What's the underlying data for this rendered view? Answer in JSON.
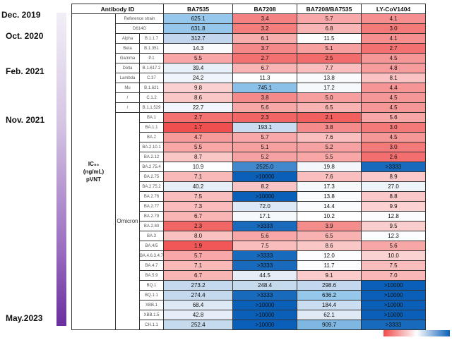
{
  "chart_data": {
    "type": "table",
    "header": {
      "antibody_id_label": "Antibody ID",
      "antibodies": [
        "BA7535",
        "BA7208",
        "BA7208/BA7535",
        "LY-CoV1404"
      ]
    },
    "row_group_label": [
      "IC₅₀",
      "(ng/mL)",
      "pVNT"
    ],
    "omicron_group_label": "Omicron",
    "timeline": [
      {
        "label": "Dec. 2019"
      },
      {
        "label": "Oct. 2020"
      },
      {
        "label": "Feb. 2021"
      },
      {
        "label": "Nov. 2021"
      },
      {
        "label": "May.2023"
      }
    ],
    "rows": [
      {
        "lineage": "Reference strain",
        "mutation": "",
        "group": "pre",
        "values": [
          "625.1",
          "3.4",
          "5.7",
          "4.1"
        ]
      },
      {
        "lineage": "D614G",
        "mutation": "",
        "group": "pre",
        "values": [
          "631.8",
          "3.2",
          "6.8",
          "3.0"
        ]
      },
      {
        "lineage": "Alpha",
        "mutation": "B.1.1.7",
        "group": "pre",
        "values": [
          "312.7",
          "6.1",
          "11.5",
          "4.1"
        ]
      },
      {
        "lineage": "Beta",
        "mutation": "B.1.351",
        "group": "pre",
        "values": [
          "14.3",
          "3.7",
          "5.1",
          "2.7"
        ]
      },
      {
        "lineage": "Gamma",
        "mutation": "P.1",
        "group": "pre",
        "values": [
          "5.5",
          "2.7",
          "2.5",
          "4.5"
        ]
      },
      {
        "lineage": "Delta",
        "mutation": "B.1.617.2",
        "group": "pre",
        "values": [
          "39.4",
          "6.7",
          "7.7",
          "4.8"
        ]
      },
      {
        "lineage": "Lambda",
        "mutation": "C.37",
        "group": "pre",
        "values": [
          "24.2",
          "11.3",
          "13.8",
          "8.1"
        ]
      },
      {
        "lineage": "Mu",
        "mutation": "B.1.621",
        "group": "pre",
        "values": [
          "9.8",
          "745.1",
          "17.2",
          "4.4"
        ]
      },
      {
        "lineage": "/",
        "mutation": "C.1.2",
        "group": "pre",
        "values": [
          "8.6",
          "3.8",
          "5.0",
          "4.5"
        ]
      },
      {
        "lineage": "/",
        "mutation": "B.1.1.529",
        "group": "pre",
        "values": [
          "22.7",
          "5.6",
          "6.5",
          "4.5"
        ]
      },
      {
        "lineage": "BA.1",
        "mutation": "",
        "group": "omicron",
        "values": [
          "2.7",
          "2.3",
          "2.1",
          "5.6"
        ]
      },
      {
        "lineage": "BA.1.1",
        "mutation": "",
        "group": "omicron",
        "values": [
          "1.7",
          "193.1",
          "3.8",
          "3.0"
        ]
      },
      {
        "lineage": "BA.2",
        "mutation": "",
        "group": "omicron",
        "values": [
          "4.7",
          "5.7",
          "7.6",
          "4.5"
        ]
      },
      {
        "lineage": "BA.2.10.1",
        "mutation": "",
        "group": "omicron",
        "values": [
          "5.5",
          "5.1",
          "5.2",
          "3.0"
        ]
      },
      {
        "lineage": "BA.2.12",
        "mutation": "",
        "group": "omicron",
        "values": [
          "8.7",
          "5.2",
          "5.5",
          "2.6"
        ]
      },
      {
        "lineage": "BA.2.75.4",
        "mutation": "",
        "group": "omicron",
        "values": [
          "10.9",
          "2525.0",
          "19.8",
          ">3333"
        ]
      },
      {
        "lineage": "BA.2.75",
        "mutation": "",
        "group": "omicron",
        "values": [
          "7.1",
          ">10000",
          "7.6",
          "8.9"
        ]
      },
      {
        "lineage": "BA.2.75.2",
        "mutation": "",
        "group": "omicron",
        "values": [
          "40.2",
          "8.2",
          "17.3",
          "27.0"
        ]
      },
      {
        "lineage": "BA.2.76",
        "mutation": "",
        "group": "omicron",
        "values": [
          "7.5",
          ">10000",
          "13.8",
          "8.8"
        ]
      },
      {
        "lineage": "BA.2.77",
        "mutation": "",
        "group": "omicron",
        "values": [
          "7.3",
          "72.0",
          "14.4",
          "9.9"
        ]
      },
      {
        "lineage": "BA.2.79",
        "mutation": "",
        "group": "omicron",
        "values": [
          "6.7",
          "17.1",
          "10.2",
          "12.8"
        ]
      },
      {
        "lineage": "BA.2.80",
        "mutation": "",
        "group": "omicron",
        "values": [
          "2.3",
          ">3333",
          "3.9",
          "9.5"
        ]
      },
      {
        "lineage": "BA.3",
        "mutation": "",
        "group": "omicron",
        "values": [
          "8.0",
          "5.6",
          "6.5",
          "12.3"
        ]
      },
      {
        "lineage": "BA.4/5",
        "mutation": "",
        "group": "omicron",
        "values": [
          "1.9",
          "7.5",
          "8.6",
          "5.6"
        ]
      },
      {
        "lineage": "BA.4.6.3.4.7",
        "mutation": "",
        "group": "omicron",
        "values": [
          "5.7",
          ">3333",
          "12.0",
          "10.0"
        ]
      },
      {
        "lineage": "BA.4.7",
        "mutation": "",
        "group": "omicron",
        "values": [
          "7.1",
          ">3333",
          "11.7",
          "7.5"
        ]
      },
      {
        "lineage": "BA.5.9",
        "mutation": "",
        "group": "omicron",
        "values": [
          "6.7",
          "44.5",
          "9.1",
          "7.0"
        ]
      },
      {
        "lineage": "BQ.1",
        "mutation": "",
        "group": "omicron",
        "values": [
          "273.2",
          "248.4",
          "298.6",
          ">10000"
        ]
      },
      {
        "lineage": "BQ.1.1",
        "mutation": "",
        "group": "omicron",
        "values": [
          "274.4",
          ">3333",
          "636.2",
          ">10000"
        ]
      },
      {
        "lineage": "XBB.1",
        "mutation": "",
        "group": "omicron",
        "values": [
          "68.4",
          ">10000",
          "184.4",
          ">10000"
        ]
      },
      {
        "lineage": "XBB.1.5",
        "mutation": "",
        "group": "omicron",
        "values": [
          "42.8",
          ">10000",
          "62.1",
          ">10000"
        ]
      },
      {
        "lineage": "CH.1.1",
        "mutation": "",
        "group": "omicron",
        "values": [
          "252.4",
          ">10000",
          "909.7",
          ">3333"
        ]
      }
    ],
    "legend": {
      "gradient": [
        "#f04a4a",
        "#ffffff",
        "#0a60b8"
      ],
      "placement": "bottom-right"
    }
  }
}
